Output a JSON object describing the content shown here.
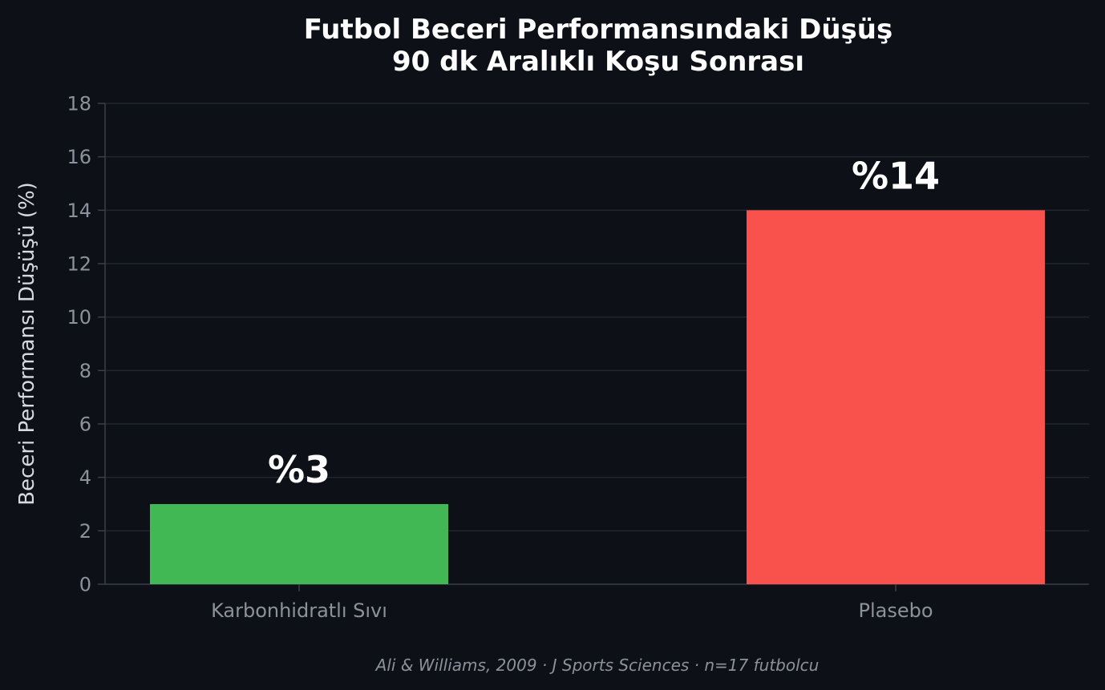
{
  "chart_data": {
    "type": "bar",
    "title": "Futbol Beceri Performansındaki Düşüş",
    "subtitle": "90 dk Aralıklı Koşu Sonrası",
    "xlabel": "",
    "ylabel": "Beceri Performansı Düşüşü (%)",
    "categories": [
      "Karbonhidratlı Sıvı",
      "Plasebo"
    ],
    "values": [
      3,
      14
    ],
    "data_labels": [
      "%3",
      "%14"
    ],
    "bar_colors": [
      "#41b853",
      "#f9524c"
    ],
    "ylim": [
      0,
      18
    ],
    "yticks": [
      0,
      2,
      4,
      6,
      8,
      10,
      12,
      14,
      16,
      18
    ],
    "grid": true,
    "legend": "none"
  },
  "source_note": "Ali & Williams, 2009 · J Sports Sciences · n=17 futbolcu",
  "colors": {
    "background": "#0d1017",
    "grid": "#22262e",
    "axis": "#3a3f48",
    "text": "#ffffff",
    "muted_text": "#8b929c"
  }
}
